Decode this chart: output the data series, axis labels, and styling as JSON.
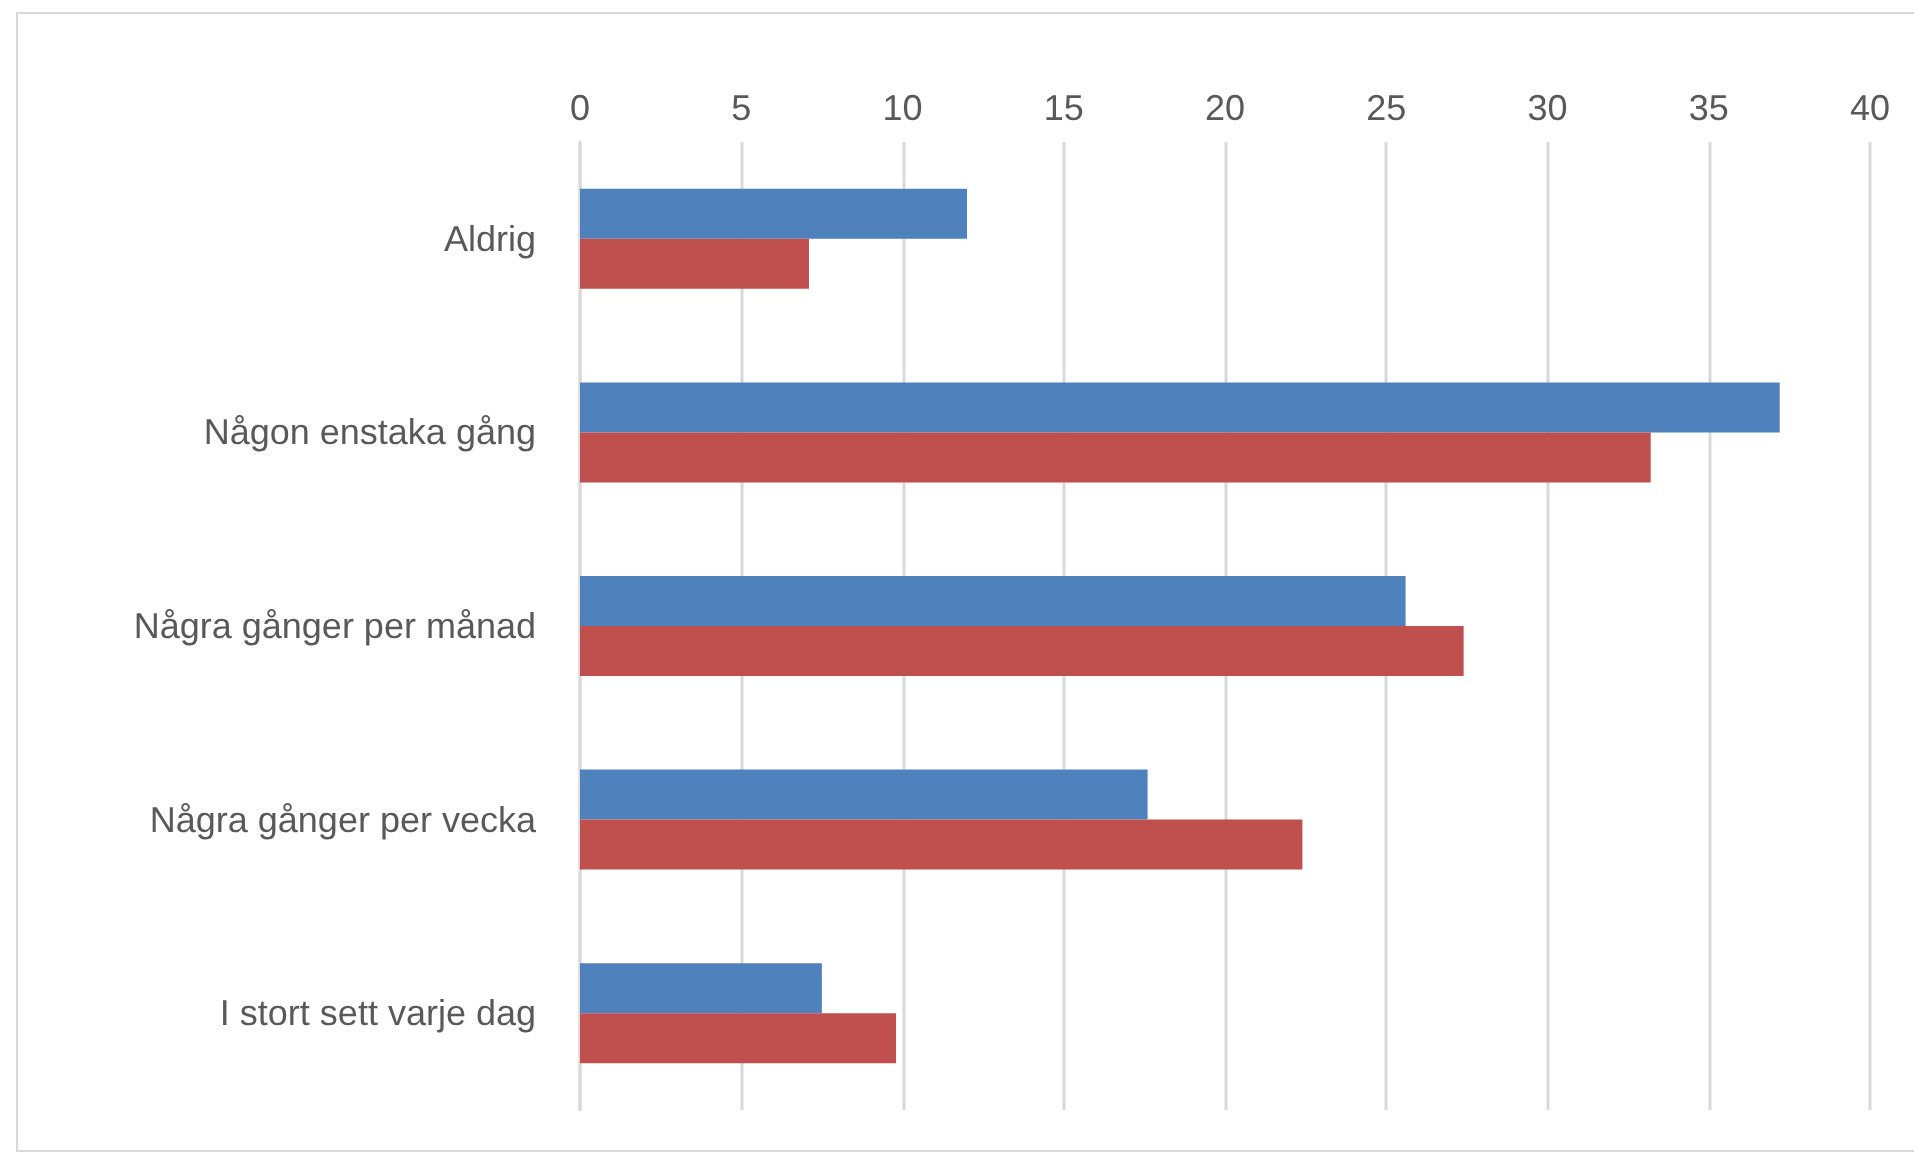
{
  "chart_data": {
    "type": "bar",
    "orientation": "horizontal",
    "categories": [
      "Aldrig",
      "Någon enstaka gång",
      "Några gånger per månad",
      "Några gånger per vecka",
      "I stort sett varje dag"
    ],
    "series": [
      {
        "color": "#4f81bd",
        "values": [
          12.0,
          37.2,
          25.6,
          17.6,
          7.5
        ]
      },
      {
        "color": "#c0504d",
        "values": [
          7.1,
          33.2,
          27.4,
          22.4,
          9.8
        ]
      }
    ],
    "xlim": [
      0,
      40
    ],
    "xticks": [
      0,
      5,
      10,
      15,
      20,
      25,
      30,
      35,
      40
    ],
    "grid": "x"
  }
}
